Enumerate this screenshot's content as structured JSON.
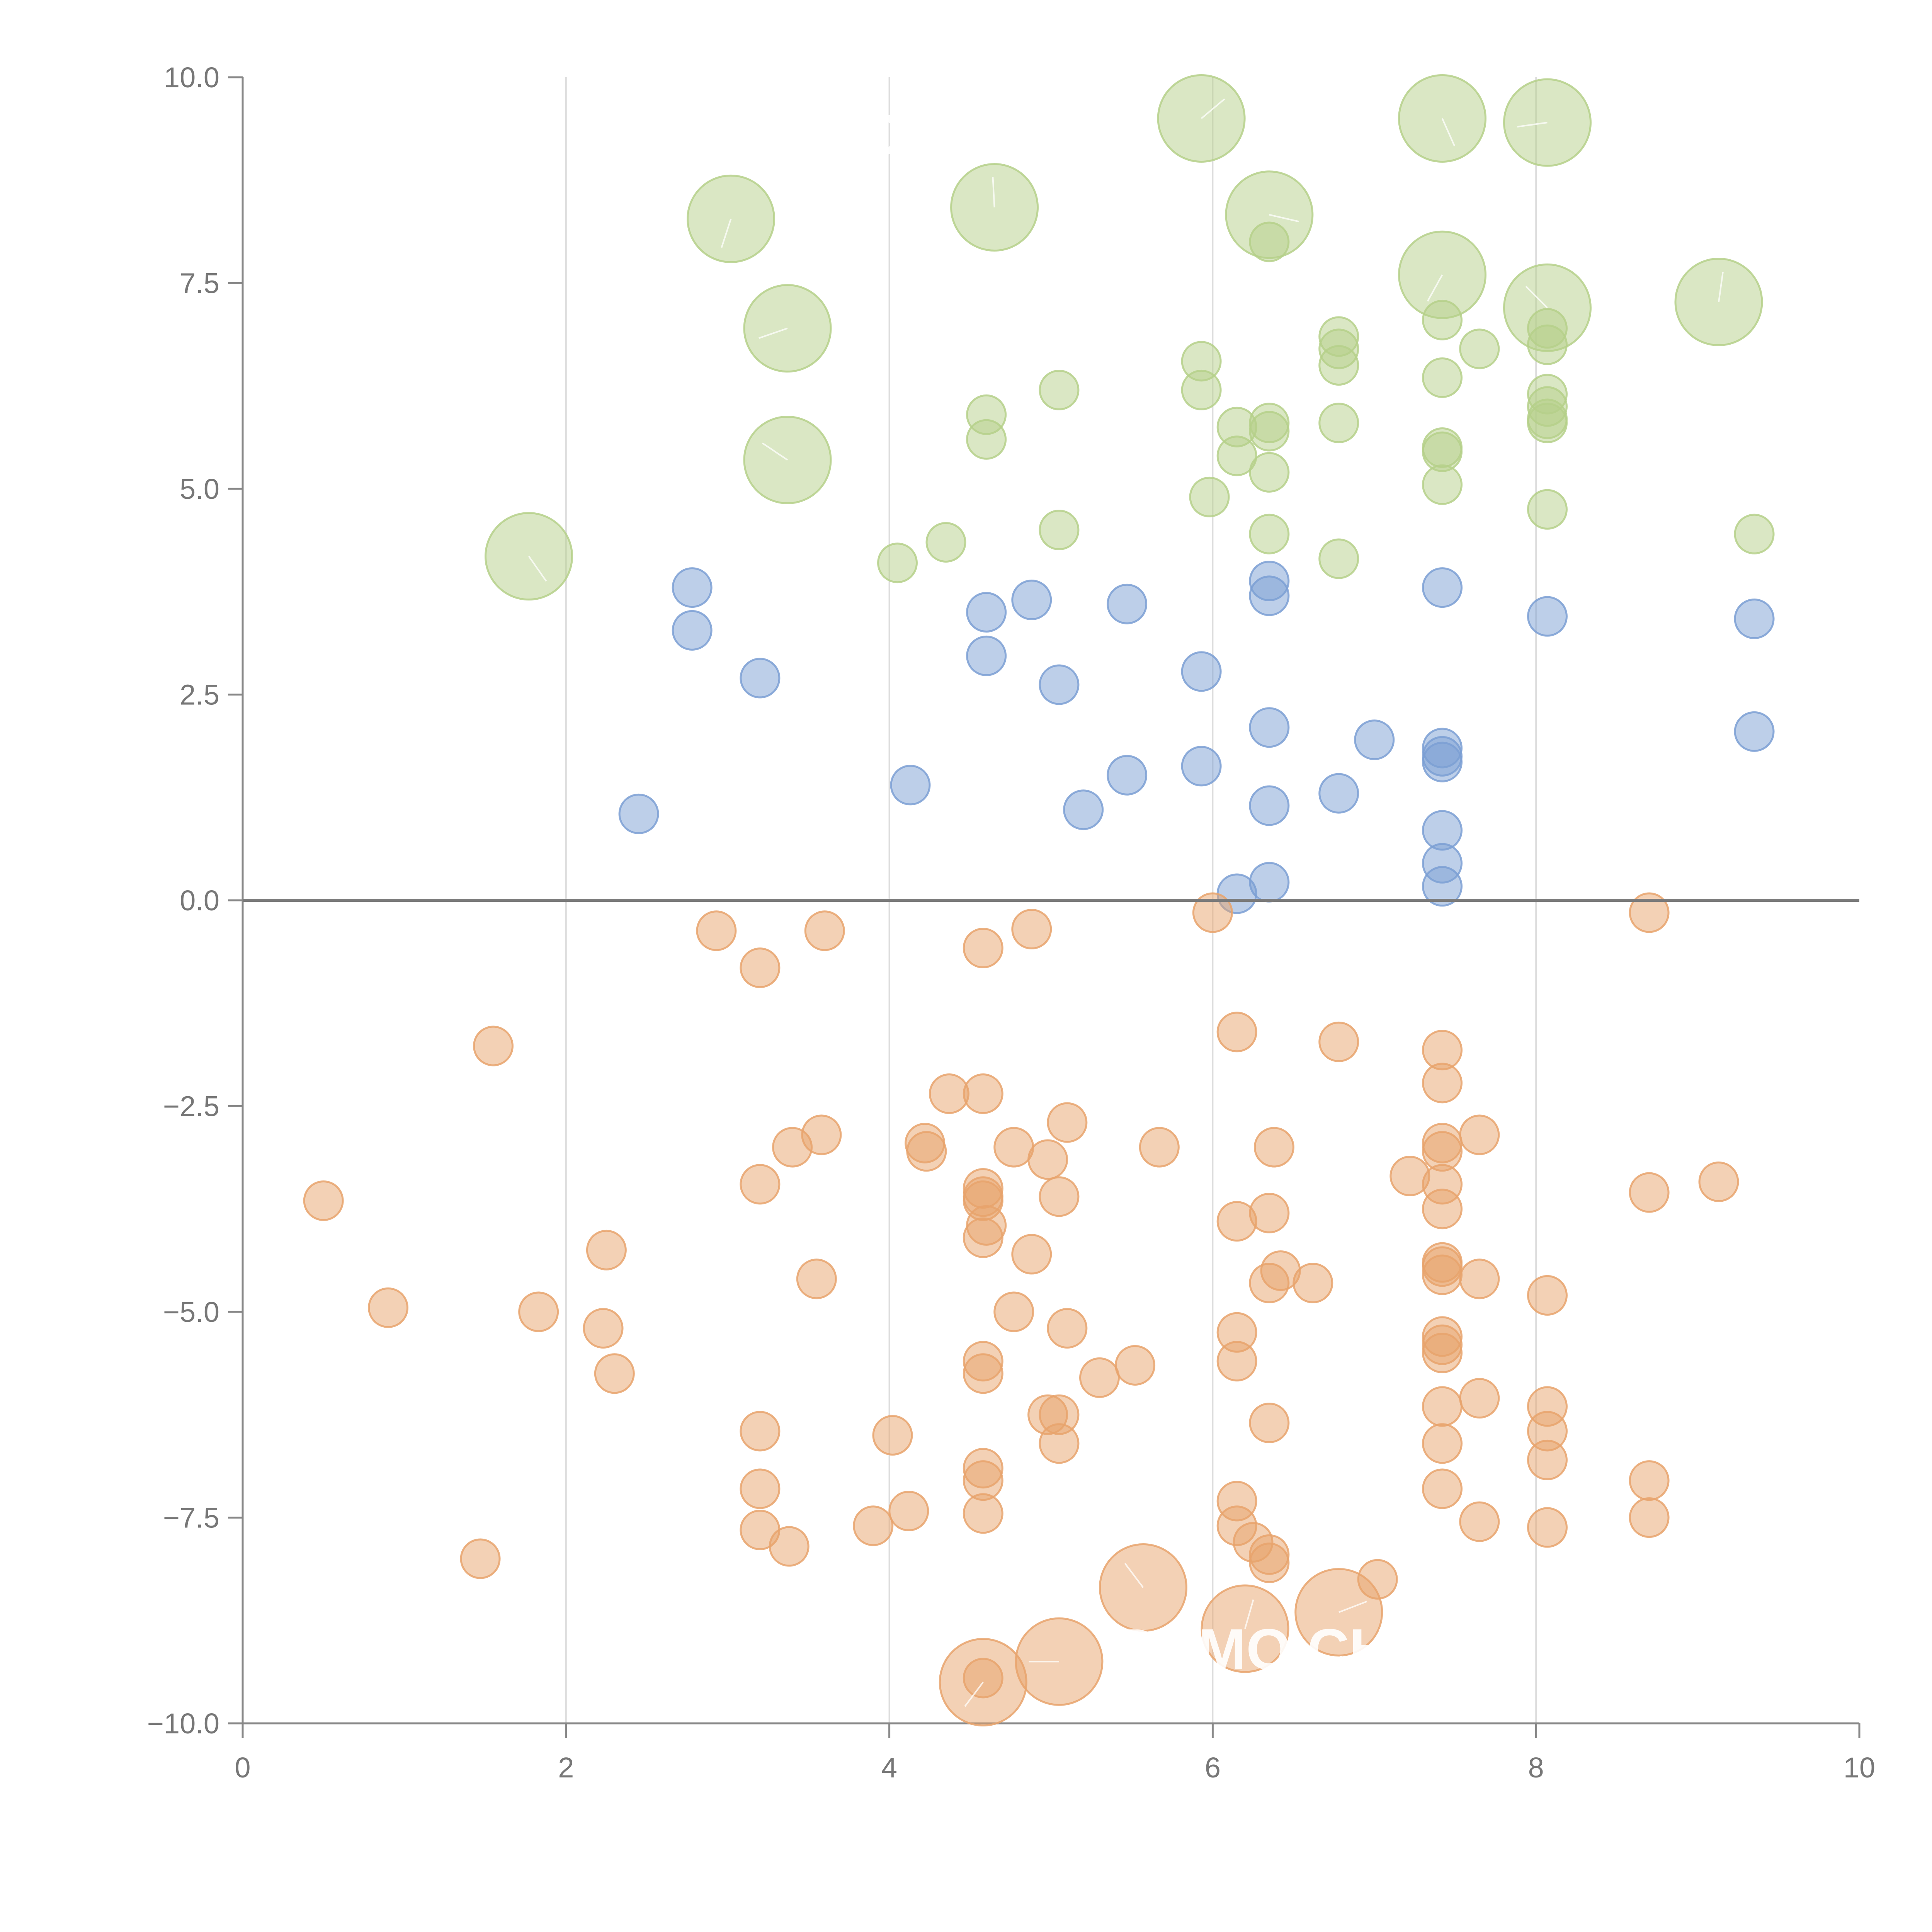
{
  "colors": {
    "blue": "#7b9fd4",
    "orange": "#e8a36c",
    "green": "#b5d08a",
    "axis": "#888888",
    "grid": "#dddddd",
    "zero_line": "#7a7a7a"
  },
  "watermark": {
    "text_top": "DEMO CHART",
    "text_bottom": "DEMO CHART"
  },
  "chart_data": {
    "type": "scatter",
    "title": "",
    "xlabel": "",
    "ylabel": "",
    "xlim": [
      0,
      10
    ],
    "ylim": [
      -10,
      10
    ],
    "x_ticks": [
      "0",
      "2",
      "4",
      "6",
      "8",
      "10"
    ],
    "y_ticks": [
      "10.0",
      "7.5",
      "5.0",
      "2.5",
      "0.0",
      "−2.5",
      "−5.0",
      "−7.5",
      "−10.0"
    ],
    "grid_x": [
      2,
      4,
      6,
      8
    ],
    "reference_line_y": 0,
    "series": [
      {
        "name": "green",
        "color": "green",
        "size": "small",
        "points": [
          [
            4.05,
            4.1
          ],
          [
            4.35,
            4.35
          ],
          [
            4.6,
            5.9
          ],
          [
            4.6,
            5.6
          ],
          [
            5.05,
            6.2
          ],
          [
            5.05,
            4.5
          ],
          [
            5.93,
            6.55
          ],
          [
            5.93,
            6.2
          ],
          [
            5.98,
            4.9
          ],
          [
            6.15,
            5.75
          ],
          [
            6.15,
            5.4
          ],
          [
            6.35,
            5.8
          ],
          [
            6.35,
            5.7
          ],
          [
            6.35,
            5.2
          ],
          [
            6.35,
            4.45
          ],
          [
            6.35,
            8.0
          ],
          [
            6.78,
            6.85
          ],
          [
            6.78,
            6.7
          ],
          [
            6.78,
            6.5
          ],
          [
            6.78,
            5.8
          ],
          [
            6.78,
            4.15
          ],
          [
            7.42,
            7.05
          ],
          [
            7.42,
            6.35
          ],
          [
            7.42,
            5.5
          ],
          [
            7.42,
            5.45
          ],
          [
            7.42,
            5.05
          ],
          [
            7.65,
            6.7
          ],
          [
            8.07,
            6.95
          ],
          [
            8.07,
            6.75
          ],
          [
            8.07,
            6.15
          ],
          [
            8.07,
            6.0
          ],
          [
            8.07,
            5.85
          ],
          [
            8.07,
            5.8
          ],
          [
            8.07,
            4.75
          ],
          [
            9.35,
            4.45
          ]
        ]
      },
      {
        "name": "green-large",
        "color": "green",
        "size": "large",
        "points": [
          [
            1.77,
            4.18
          ],
          [
            3.02,
            8.28
          ],
          [
            3.37,
            6.95
          ],
          [
            3.37,
            5.35
          ],
          [
            4.65,
            8.42
          ],
          [
            5.93,
            9.5
          ],
          [
            6.35,
            8.33
          ],
          [
            7.42,
            9.5
          ],
          [
            7.42,
            7.6
          ],
          [
            8.07,
            9.45
          ],
          [
            8.07,
            7.2
          ],
          [
            9.13,
            7.27
          ]
        ]
      },
      {
        "name": "blue",
        "color": "blue",
        "size": "small",
        "points": [
          [
            2.45,
            1.05
          ],
          [
            2.78,
            3.8
          ],
          [
            2.78,
            3.28
          ],
          [
            3.2,
            2.7
          ],
          [
            4.13,
            1.4
          ],
          [
            4.6,
            3.5
          ],
          [
            4.6,
            2.97
          ],
          [
            4.88,
            3.65
          ],
          [
            5.05,
            2.62
          ],
          [
            5.2,
            1.1
          ],
          [
            5.47,
            3.6
          ],
          [
            5.47,
            1.52
          ],
          [
            5.93,
            2.78
          ],
          [
            5.93,
            1.63
          ],
          [
            6.15,
            0.08
          ],
          [
            6.35,
            3.88
          ],
          [
            6.35,
            3.7
          ],
          [
            6.35,
            2.1
          ],
          [
            6.35,
            1.15
          ],
          [
            6.35,
            0.22
          ],
          [
            6.78,
            1.3
          ],
          [
            7.0,
            1.95
          ],
          [
            7.42,
            3.8
          ],
          [
            7.42,
            1.85
          ],
          [
            7.42,
            1.75
          ],
          [
            7.42,
            1.68
          ],
          [
            7.42,
            0.85
          ],
          [
            7.42,
            0.45
          ],
          [
            7.42,
            0.17
          ],
          [
            8.07,
            3.45
          ],
          [
            9.35,
            3.42
          ],
          [
            9.35,
            2.05
          ]
        ]
      },
      {
        "name": "orange",
        "color": "orange",
        "size": "small",
        "points": [
          [
            0.5,
            -3.65
          ],
          [
            0.9,
            -4.95
          ],
          [
            1.47,
            -8.0
          ],
          [
            1.55,
            -1.77
          ],
          [
            1.83,
            -5.0
          ],
          [
            2.23,
            -5.2
          ],
          [
            2.25,
            -4.25
          ],
          [
            2.3,
            -5.75
          ],
          [
            2.93,
            -0.37
          ],
          [
            3.2,
            -0.82
          ],
          [
            3.2,
            -3.45
          ],
          [
            3.2,
            -6.45
          ],
          [
            3.2,
            -7.15
          ],
          [
            3.2,
            -7.65
          ],
          [
            3.38,
            -7.85
          ],
          [
            3.4,
            -3.0
          ],
          [
            3.55,
            -4.6
          ],
          [
            3.58,
            -2.85
          ],
          [
            3.6,
            -0.37
          ],
          [
            3.9,
            -7.6
          ],
          [
            4.02,
            -6.5
          ],
          [
            4.12,
            -7.42
          ],
          [
            4.22,
            -2.95
          ],
          [
            4.23,
            -3.05
          ],
          [
            4.37,
            -2.35
          ],
          [
            4.58,
            -0.58
          ],
          [
            4.58,
            -2.35
          ],
          [
            4.58,
            -3.5
          ],
          [
            4.58,
            -3.6
          ],
          [
            4.58,
            -3.65
          ],
          [
            4.6,
            -3.95
          ],
          [
            4.58,
            -4.1
          ],
          [
            4.58,
            -5.6
          ],
          [
            4.58,
            -5.75
          ],
          [
            4.58,
            -6.9
          ],
          [
            4.58,
            -7.05
          ],
          [
            4.58,
            -7.45
          ],
          [
            4.58,
            -9.45
          ],
          [
            4.77,
            -3.0
          ],
          [
            4.77,
            -5.0
          ],
          [
            4.88,
            -0.35
          ],
          [
            4.88,
            -4.3
          ],
          [
            4.98,
            -3.15
          ],
          [
            5.05,
            -3.6
          ],
          [
            4.98,
            -6.25
          ],
          [
            5.05,
            -6.25
          ],
          [
            5.05,
            -6.6
          ],
          [
            5.1,
            -2.7
          ],
          [
            5.1,
            -5.2
          ],
          [
            5.3,
            -5.8
          ],
          [
            5.52,
            -5.65
          ],
          [
            5.67,
            -3.0
          ],
          [
            6.0,
            -0.15
          ],
          [
            6.15,
            -1.6
          ],
          [
            6.15,
            -3.9
          ],
          [
            6.15,
            -5.25
          ],
          [
            6.15,
            -5.6
          ],
          [
            6.15,
            -7.3
          ],
          [
            6.15,
            -7.6
          ],
          [
            6.25,
            -7.8
          ],
          [
            6.35,
            -3.8
          ],
          [
            6.35,
            -4.65
          ],
          [
            6.42,
            -4.5
          ],
          [
            6.35,
            -6.35
          ],
          [
            6.35,
            -7.95
          ],
          [
            6.35,
            -8.05
          ],
          [
            6.38,
            -3.0
          ],
          [
            6.62,
            -4.65
          ],
          [
            6.78,
            -1.72
          ],
          [
            7.02,
            -8.25
          ],
          [
            7.22,
            -3.35
          ],
          [
            7.42,
            -1.82
          ],
          [
            7.42,
            -2.22
          ],
          [
            7.42,
            -2.95
          ],
          [
            7.42,
            -3.05
          ],
          [
            7.42,
            -3.45
          ],
          [
            7.42,
            -3.75
          ],
          [
            7.42,
            -4.4
          ],
          [
            7.42,
            -4.45
          ],
          [
            7.42,
            -4.55
          ],
          [
            7.42,
            -5.3
          ],
          [
            7.42,
            -5.4
          ],
          [
            7.42,
            -5.5
          ],
          [
            7.42,
            -6.15
          ],
          [
            7.42,
            -6.6
          ],
          [
            7.42,
            -7.15
          ],
          [
            7.65,
            -2.85
          ],
          [
            7.65,
            -4.6
          ],
          [
            7.65,
            -6.05
          ],
          [
            7.65,
            -7.55
          ],
          [
            8.07,
            -4.8
          ],
          [
            8.07,
            -6.15
          ],
          [
            8.07,
            -6.45
          ],
          [
            8.07,
            -6.8
          ],
          [
            8.07,
            -7.62
          ],
          [
            8.7,
            -0.15
          ],
          [
            8.7,
            -3.55
          ],
          [
            8.7,
            -7.05
          ],
          [
            8.7,
            -7.5
          ],
          [
            9.13,
            -3.42
          ]
        ]
      },
      {
        "name": "orange-large",
        "color": "orange",
        "size": "large",
        "points": [
          [
            4.58,
            -9.5
          ],
          [
            5.05,
            -9.25
          ],
          [
            5.57,
            -8.35
          ],
          [
            6.2,
            -8.85
          ],
          [
            6.78,
            -8.65
          ]
        ]
      }
    ]
  }
}
